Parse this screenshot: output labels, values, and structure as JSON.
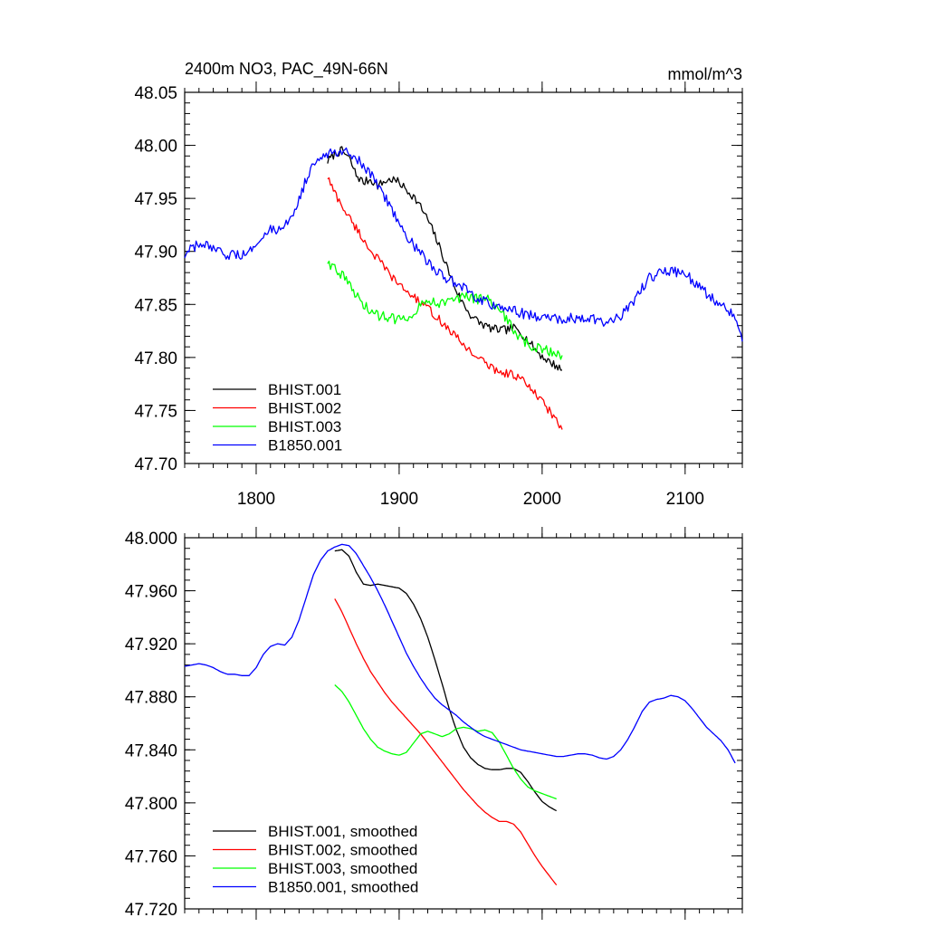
{
  "chart_data": [
    {
      "type": "line",
      "title": "2400m NO3, PAC_49N-66N",
      "units": "mmol/m^3",
      "xlim": [
        1750,
        2140
      ],
      "ylim": [
        47.7,
        48.05
      ],
      "xticks": [
        1800,
        1900,
        2000,
        2100
      ],
      "xtick_labels": [
        "1800",
        "1900",
        "2000",
        "2100"
      ],
      "yticks": [
        47.7,
        47.75,
        47.8,
        47.85,
        47.9,
        47.95,
        48.0,
        48.05
      ],
      "ytick_labels": [
        "47.70",
        "47.75",
        "47.80",
        "47.85",
        "47.90",
        "47.95",
        "48.00",
        "48.05"
      ],
      "legend_position": "bottom-left",
      "series": [
        {
          "name": "BHIST.001",
          "color": "#000000",
          "noise": 0.004,
          "x": [
            1850,
            1855,
            1860,
            1865,
            1870,
            1875,
            1880,
            1885,
            1890,
            1895,
            1900,
            1905,
            1910,
            1915,
            1920,
            1925,
            1930,
            1935,
            1940,
            1945,
            1950,
            1955,
            1960,
            1965,
            1970,
            1975,
            1980,
            1985,
            1990,
            1995,
            2000,
            2005,
            2010,
            2014
          ],
          "y": [
            47.985,
            47.992,
            47.995,
            47.988,
            47.972,
            47.965,
            47.968,
            47.962,
            47.966,
            47.968,
            47.965,
            47.958,
            47.952,
            47.942,
            47.93,
            47.915,
            47.898,
            47.88,
            47.863,
            47.85,
            47.84,
            47.834,
            47.83,
            47.827,
            47.826,
            47.826,
            47.828,
            47.824,
            47.816,
            47.808,
            47.801,
            47.796,
            47.792,
            47.788
          ]
        },
        {
          "name": "BHIST.002",
          "color": "#ff0000",
          "noise": 0.004,
          "x": [
            1850,
            1855,
            1860,
            1865,
            1870,
            1875,
            1880,
            1885,
            1890,
            1895,
            1900,
            1905,
            1910,
            1915,
            1920,
            1925,
            1930,
            1935,
            1940,
            1945,
            1950,
            1955,
            1960,
            1965,
            1970,
            1975,
            1980,
            1985,
            1990,
            1995,
            2000,
            2005,
            2010,
            2014
          ],
          "y": [
            47.97,
            47.955,
            47.943,
            47.932,
            47.922,
            47.911,
            47.901,
            47.893,
            47.884,
            47.876,
            47.868,
            47.863,
            47.857,
            47.852,
            47.846,
            47.84,
            47.833,
            47.826,
            47.819,
            47.812,
            47.806,
            47.8,
            47.795,
            47.79,
            47.787,
            47.785,
            47.784,
            47.78,
            47.773,
            47.766,
            47.758,
            47.75,
            47.74,
            47.732
          ]
        },
        {
          "name": "BHIST.003",
          "color": "#00ff00",
          "noise": 0.005,
          "x": [
            1850,
            1855,
            1860,
            1865,
            1870,
            1875,
            1880,
            1885,
            1890,
            1895,
            1900,
            1905,
            1910,
            1915,
            1920,
            1925,
            1930,
            1935,
            1940,
            1945,
            1950,
            1955,
            1960,
            1965,
            1970,
            1975,
            1980,
            1985,
            1990,
            1995,
            2000,
            2005,
            2010,
            2014
          ],
          "y": [
            47.89,
            47.885,
            47.878,
            47.868,
            47.858,
            47.85,
            47.843,
            47.84,
            47.838,
            47.837,
            47.836,
            47.838,
            47.843,
            47.85,
            47.854,
            47.853,
            47.851,
            47.852,
            47.856,
            47.857,
            47.856,
            47.855,
            47.856,
            47.853,
            47.846,
            47.836,
            47.826,
            47.818,
            47.812,
            47.809,
            47.808,
            47.806,
            47.804,
            47.802
          ]
        },
        {
          "name": "B1850.001",
          "color": "#0000ff",
          "noise": 0.005,
          "x": [
            1750,
            1755,
            1760,
            1765,
            1770,
            1775,
            1780,
            1785,
            1790,
            1795,
            1800,
            1805,
            1810,
            1815,
            1820,
            1825,
            1830,
            1835,
            1840,
            1845,
            1850,
            1855,
            1860,
            1865,
            1870,
            1875,
            1880,
            1885,
            1890,
            1895,
            1900,
            1905,
            1910,
            1915,
            1920,
            1925,
            1930,
            1935,
            1940,
            1945,
            1950,
            1955,
            1960,
            1965,
            1970,
            1975,
            1980,
            1985,
            1990,
            1995,
            2000,
            2005,
            2010,
            2015,
            2020,
            2025,
            2030,
            2035,
            2040,
            2045,
            2050,
            2055,
            2060,
            2065,
            2070,
            2075,
            2080,
            2085,
            2090,
            2095,
            2100,
            2105,
            2110,
            2115,
            2120,
            2125,
            2130,
            2135,
            2140
          ],
          "y": [
            47.895,
            47.903,
            47.906,
            47.905,
            47.901,
            47.898,
            47.897,
            47.896,
            47.896,
            47.898,
            47.91,
            47.917,
            47.92,
            47.918,
            47.923,
            47.935,
            47.95,
            47.968,
            47.98,
            47.987,
            47.992,
            47.994,
            47.996,
            47.994,
            47.988,
            47.98,
            47.972,
            47.963,
            47.952,
            47.94,
            47.928,
            47.916,
            47.906,
            47.898,
            47.89,
            47.883,
            47.877,
            47.873,
            47.87,
            47.865,
            47.86,
            47.855,
            47.852,
            47.85,
            47.848,
            47.846,
            47.844,
            47.842,
            47.84,
            47.839,
            47.838,
            47.837,
            47.836,
            47.836,
            47.837,
            47.837,
            47.838,
            47.836,
            47.835,
            47.834,
            47.836,
            47.84,
            47.846,
            47.855,
            47.866,
            47.875,
            47.878,
            47.88,
            47.881,
            47.88,
            47.878,
            47.873,
            47.866,
            47.86,
            47.855,
            47.851,
            47.846,
            47.838,
            47.815
          ]
        }
      ]
    },
    {
      "type": "line",
      "xlim": [
        1750,
        2140
      ],
      "ylim": [
        47.72,
        48.0
      ],
      "xticks": [
        1800,
        1900,
        2000,
        2100
      ],
      "yticks": [
        47.72,
        47.76,
        47.8,
        47.84,
        47.88,
        47.92,
        47.96,
        48.0
      ],
      "ytick_labels": [
        "47.720",
        "47.760",
        "47.800",
        "47.840",
        "47.880",
        "47.920",
        "47.960",
        "48.000"
      ],
      "legend_position": "bottom-left",
      "series": [
        {
          "name": "BHIST.001, smoothed",
          "color": "#000000",
          "x": [
            1855,
            1860,
            1865,
            1870,
            1875,
            1880,
            1885,
            1890,
            1895,
            1900,
            1905,
            1910,
            1915,
            1920,
            1925,
            1930,
            1935,
            1940,
            1945,
            1950,
            1955,
            1960,
            1965,
            1970,
            1975,
            1980,
            1985,
            1990,
            1995,
            2000,
            2005,
            2010
          ],
          "y": [
            47.99,
            47.991,
            47.986,
            47.974,
            47.965,
            47.964,
            47.965,
            47.964,
            47.963,
            47.962,
            47.958,
            47.95,
            47.939,
            47.925,
            47.908,
            47.89,
            47.871,
            47.855,
            47.842,
            47.834,
            47.829,
            47.826,
            47.825,
            47.825,
            47.826,
            47.826,
            47.823,
            47.816,
            47.808,
            47.801,
            47.797,
            47.794
          ]
        },
        {
          "name": "BHIST.002, smoothed",
          "color": "#ff0000",
          "x": [
            1855,
            1860,
            1865,
            1870,
            1875,
            1880,
            1885,
            1890,
            1895,
            1900,
            1905,
            1910,
            1915,
            1920,
            1925,
            1930,
            1935,
            1940,
            1945,
            1950,
            1955,
            1960,
            1965,
            1970,
            1975,
            1980,
            1985,
            1990,
            1995,
            2000,
            2005,
            2010
          ],
          "y": [
            47.954,
            47.944,
            47.932,
            47.92,
            47.909,
            47.899,
            47.891,
            47.883,
            47.876,
            47.87,
            47.864,
            47.858,
            47.852,
            47.845,
            47.838,
            47.831,
            47.824,
            47.817,
            47.81,
            47.804,
            47.798,
            47.793,
            47.789,
            47.786,
            47.786,
            47.784,
            47.778,
            47.769,
            47.76,
            47.752,
            47.745,
            47.738
          ]
        },
        {
          "name": "BHIST.003, smoothed",
          "color": "#00ff00",
          "x": [
            1855,
            1860,
            1865,
            1870,
            1875,
            1880,
            1885,
            1890,
            1895,
            1900,
            1905,
            1910,
            1915,
            1920,
            1925,
            1930,
            1935,
            1940,
            1945,
            1950,
            1955,
            1960,
            1965,
            1970,
            1975,
            1980,
            1985,
            1990,
            1995,
            2000,
            2005,
            2010
          ],
          "y": [
            47.889,
            47.884,
            47.876,
            47.866,
            47.856,
            47.848,
            47.842,
            47.839,
            47.837,
            47.836,
            47.838,
            47.845,
            47.852,
            47.854,
            47.852,
            47.85,
            47.852,
            47.856,
            47.857,
            47.856,
            47.854,
            47.855,
            47.853,
            47.846,
            47.836,
            47.826,
            47.818,
            47.812,
            47.809,
            47.807,
            47.805,
            47.803
          ]
        },
        {
          "name": "B1850.001, smoothed",
          "color": "#0000ff",
          "x": [
            1750,
            1755,
            1760,
            1765,
            1770,
            1775,
            1780,
            1785,
            1790,
            1795,
            1800,
            1805,
            1810,
            1815,
            1820,
            1825,
            1830,
            1835,
            1840,
            1845,
            1850,
            1855,
            1860,
            1865,
            1870,
            1875,
            1880,
            1885,
            1890,
            1895,
            1900,
            1905,
            1910,
            1915,
            1920,
            1925,
            1930,
            1935,
            1940,
            1945,
            1950,
            1955,
            1960,
            1965,
            1970,
            1975,
            1980,
            1985,
            1990,
            1995,
            2000,
            2005,
            2010,
            2015,
            2020,
            2025,
            2030,
            2035,
            2040,
            2045,
            2050,
            2055,
            2060,
            2065,
            2070,
            2075,
            2080,
            2085,
            2090,
            2095,
            2100,
            2105,
            2110,
            2115,
            2120,
            2125,
            2130,
            2135
          ],
          "y": [
            47.903,
            47.904,
            47.905,
            47.904,
            47.902,
            47.899,
            47.897,
            47.897,
            47.896,
            47.896,
            47.902,
            47.912,
            47.918,
            47.92,
            47.919,
            47.925,
            47.938,
            47.955,
            47.972,
            47.983,
            47.99,
            47.993,
            47.995,
            47.994,
            47.988,
            47.979,
            47.97,
            47.96,
            47.949,
            47.937,
            47.925,
            47.913,
            47.903,
            47.894,
            47.886,
            47.879,
            47.874,
            47.87,
            47.866,
            47.861,
            47.857,
            47.853,
            47.85,
            47.848,
            47.846,
            47.844,
            47.842,
            47.84,
            47.839,
            47.838,
            47.837,
            47.836,
            47.835,
            47.835,
            47.836,
            47.837,
            47.837,
            47.836,
            47.834,
            47.833,
            47.835,
            47.84,
            47.848,
            47.858,
            47.869,
            47.876,
            47.878,
            47.879,
            47.881,
            47.88,
            47.877,
            47.871,
            47.864,
            47.857,
            47.852,
            47.847,
            47.84,
            47.83
          ]
        }
      ]
    }
  ]
}
